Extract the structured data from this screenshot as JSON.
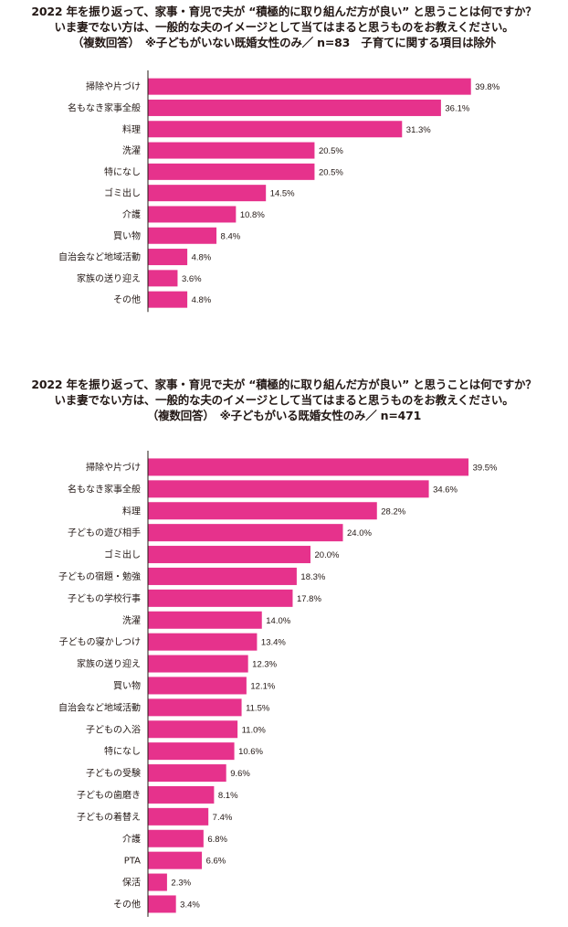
{
  "charts": [
    {
      "title_lines": [
        "2022 年を振り返って、家事・育児で夫が “積極的に取り組んだ方が良い” と思うことは何ですか？",
        "いま妻でない方は、一般的な夫のイメージとして当てはまると思うものをお教えください。",
        "（複数回答）　※子どもがいない既婚女性のみ／ n=83　子育てに関する項目は除外"
      ]
    },
    {
      "title_lines": [
        "2022 年を振り返って、家事・育児で夫が “積極的に取り組んだ方が良い” と思うことは何ですか？",
        "いま妻でない方は、一般的な夫のイメージとして当てはまると思うものをお教えください。",
        "（複数回答）　※子どもがいる既婚女性のみ／ n=471"
      ]
    }
  ],
  "chart_data": [
    {
      "type": "bar",
      "orientation": "horizontal",
      "bar_color": "#e6328c",
      "categories": [
        "掃除や片づけ",
        "名もなき家事全般",
        "料理",
        "洗濯",
        "特になし",
        "ゴミ出し",
        "介護",
        "買い物",
        "自治会など地域活動",
        "家族の送り迎え",
        "その他"
      ],
      "values": [
        39.8,
        36.1,
        31.3,
        20.5,
        20.5,
        14.5,
        10.8,
        8.4,
        4.8,
        3.6,
        4.8
      ],
      "value_labels": [
        "39.8%",
        "36.1%",
        "31.3%",
        "20.5%",
        "20.5%",
        "14.5%",
        "10.8%",
        "8.4%",
        "4.8%",
        "3.6%",
        "4.8%"
      ],
      "xlim": [
        0,
        45
      ]
    },
    {
      "type": "bar",
      "orientation": "horizontal",
      "bar_color": "#e6328c",
      "categories": [
        "掃除や片づけ",
        "名もなき家事全般",
        "料理",
        "子どもの遊び相手",
        "ゴミ出し",
        "子どもの宿題・勉強",
        "子どもの学校行事",
        "洗濯",
        "子どもの寝かしつけ",
        "家族の送り迎え",
        "買い物",
        "自治会など地域活動",
        "子どもの入浴",
        "特になし",
        "子どもの受験",
        "子どもの歯磨き",
        "子どもの着替え",
        "介護",
        "PTA",
        "保活",
        "その他"
      ],
      "values": [
        39.5,
        34.6,
        28.2,
        24.0,
        20.0,
        18.3,
        17.8,
        14.0,
        13.4,
        12.3,
        12.1,
        11.5,
        11.0,
        10.6,
        9.6,
        8.1,
        7.4,
        6.8,
        6.6,
        2.3,
        3.4
      ],
      "value_labels": [
        "39.5%",
        "34.6%",
        "28.2%",
        "24.0%",
        "20.0%",
        "18.3%",
        "17.8%",
        "14.0%",
        "13.4%",
        "12.3%",
        "12.1%",
        "11.5%",
        "11.0%",
        "10.6%",
        "9.6%",
        "8.1%",
        "7.4%",
        "6.8%",
        "6.6%",
        "2.3%",
        "3.4%"
      ],
      "xlim": [
        0,
        45
      ]
    }
  ]
}
